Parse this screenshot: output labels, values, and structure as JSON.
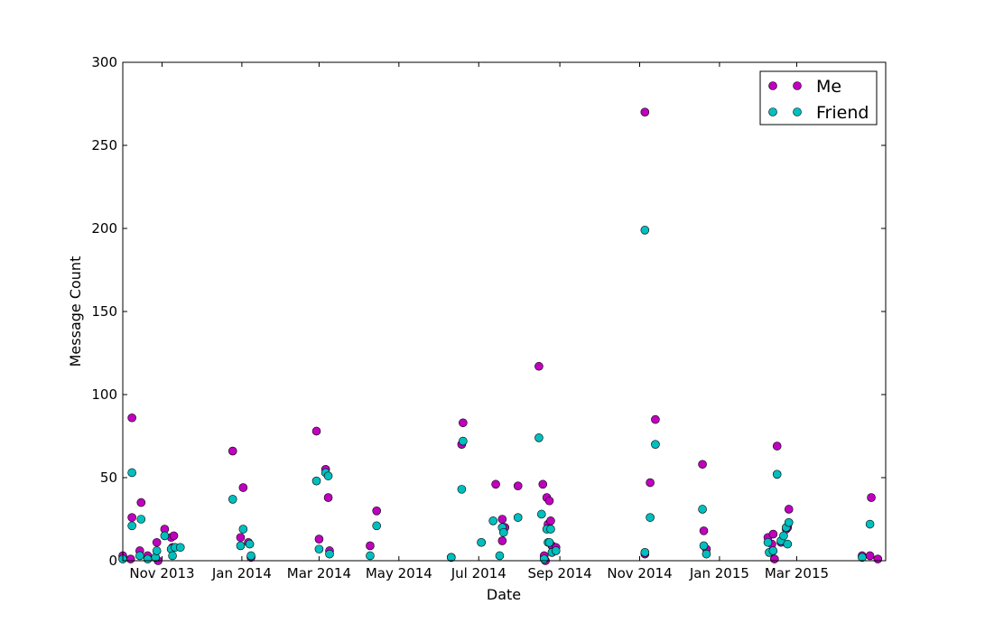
{
  "chart_data": {
    "type": "scatter",
    "title": "",
    "xlabel": "Date",
    "ylabel": "Message Count",
    "x_tick_labels": [
      "Nov 2013",
      "Jan 2014",
      "Mar 2014",
      "May 2014",
      "Jul 2014",
      "Sep 2014",
      "Nov 2014",
      "Jan 2015",
      "Mar 2015"
    ],
    "x_ticks": [
      "2013-11-01",
      "2014-01-01",
      "2014-03-01",
      "2014-05-01",
      "2014-07-01",
      "2014-09-01",
      "2014-11-01",
      "2015-01-01",
      "2015-03-01"
    ],
    "y_tick_labels": [
      "0",
      "50",
      "100",
      "150",
      "200",
      "250",
      "300"
    ],
    "xlim": [
      "2013-10-02",
      "2015-05-08"
    ],
    "ylim": [
      0,
      300
    ],
    "grid": false,
    "legend_position": "top-right",
    "colors": {
      "Me": "#bf00bf",
      "Friend": "#00bfbf"
    },
    "series": [
      {
        "name": "Me",
        "points": [
          [
            "2013-10-02",
            3
          ],
          [
            "2013-10-08",
            1
          ],
          [
            "2013-10-09",
            86
          ],
          [
            "2013-10-09",
            26
          ],
          [
            "2013-10-15",
            6
          ],
          [
            "2013-10-16",
            35
          ],
          [
            "2013-10-21",
            3
          ],
          [
            "2013-10-28",
            11
          ],
          [
            "2013-10-29",
            0
          ],
          [
            "2013-11-03",
            19
          ],
          [
            "2013-11-08",
            14
          ],
          [
            "2013-11-10",
            15
          ],
          [
            "2013-11-09",
            8
          ],
          [
            "2013-12-25",
            66
          ],
          [
            "2013-12-31",
            14
          ],
          [
            "2014-01-02",
            44
          ],
          [
            "2014-01-06",
            11
          ],
          [
            "2014-01-08",
            2
          ],
          [
            "2014-02-27",
            78
          ],
          [
            "2014-03-01",
            13
          ],
          [
            "2014-03-06",
            55
          ],
          [
            "2014-03-08",
            38
          ],
          [
            "2014-03-09",
            6
          ],
          [
            "2014-04-09",
            9
          ],
          [
            "2014-04-14",
            30
          ],
          [
            "2014-06-10",
            2
          ],
          [
            "2014-06-18",
            70
          ],
          [
            "2014-06-19",
            83
          ],
          [
            "2014-07-03",
            11
          ],
          [
            "2014-07-14",
            46
          ],
          [
            "2014-07-19",
            12
          ],
          [
            "2014-07-19",
            25
          ],
          [
            "2014-07-21",
            20
          ],
          [
            "2014-07-31",
            45
          ],
          [
            "2014-08-16",
            117
          ],
          [
            "2014-08-19",
            46
          ],
          [
            "2014-08-20",
            3
          ],
          [
            "2014-08-22",
            38
          ],
          [
            "2014-08-23",
            22
          ],
          [
            "2014-08-24",
            36
          ],
          [
            "2014-08-25",
            24
          ],
          [
            "2014-08-26",
            9
          ],
          [
            "2014-08-29",
            8
          ],
          [
            "2014-08-21",
            0
          ],
          [
            "2014-11-05",
            270
          ],
          [
            "2014-11-05",
            4
          ],
          [
            "2014-11-09",
            47
          ],
          [
            "2014-11-13",
            85
          ],
          [
            "2014-12-19",
            58
          ],
          [
            "2014-12-20",
            18
          ],
          [
            "2014-12-22",
            7
          ],
          [
            "2015-02-07",
            14
          ],
          [
            "2015-02-10",
            10
          ],
          [
            "2015-02-11",
            16
          ],
          [
            "2015-02-12",
            1
          ],
          [
            "2015-02-14",
            69
          ],
          [
            "2015-02-17",
            11
          ],
          [
            "2015-02-21",
            19
          ],
          [
            "2015-02-22",
            20
          ],
          [
            "2015-02-23",
            31
          ],
          [
            "2015-04-20",
            3
          ],
          [
            "2015-04-26",
            3
          ],
          [
            "2015-04-27",
            38
          ],
          [
            "2015-05-02",
            1
          ]
        ]
      },
      {
        "name": "Friend",
        "points": [
          [
            "2013-10-02",
            1
          ],
          [
            "2013-10-09",
            53
          ],
          [
            "2013-10-09",
            21
          ],
          [
            "2013-10-15",
            3
          ],
          [
            "2013-10-16",
            25
          ],
          [
            "2013-10-21",
            1
          ],
          [
            "2013-10-27",
            2
          ],
          [
            "2013-10-28",
            6
          ],
          [
            "2013-11-03",
            15
          ],
          [
            "2013-11-08",
            7
          ],
          [
            "2013-11-09",
            3
          ],
          [
            "2013-11-11",
            8
          ],
          [
            "2013-11-15",
            8
          ],
          [
            "2013-12-25",
            37
          ],
          [
            "2013-12-31",
            9
          ],
          [
            "2014-01-02",
            19
          ],
          [
            "2014-01-07",
            10
          ],
          [
            "2014-01-08",
            3
          ],
          [
            "2014-02-27",
            48
          ],
          [
            "2014-03-01",
            7
          ],
          [
            "2014-03-06",
            53
          ],
          [
            "2014-03-08",
            51
          ],
          [
            "2014-03-09",
            4
          ],
          [
            "2014-04-09",
            3
          ],
          [
            "2014-04-14",
            21
          ],
          [
            "2014-06-10",
            2
          ],
          [
            "2014-06-18",
            43
          ],
          [
            "2014-06-19",
            72
          ],
          [
            "2014-07-03",
            11
          ],
          [
            "2014-07-12",
            24
          ],
          [
            "2014-07-17",
            3
          ],
          [
            "2014-07-19",
            20
          ],
          [
            "2014-07-20",
            17
          ],
          [
            "2014-07-31",
            26
          ],
          [
            "2014-08-16",
            74
          ],
          [
            "2014-08-18",
            28
          ],
          [
            "2014-08-20",
            1
          ],
          [
            "2014-08-22",
            19
          ],
          [
            "2014-08-23",
            11
          ],
          [
            "2014-08-24",
            11
          ],
          [
            "2014-08-25",
            19
          ],
          [
            "2014-08-26",
            5
          ],
          [
            "2014-08-29",
            6
          ],
          [
            "2014-11-05",
            199
          ],
          [
            "2014-11-05",
            5
          ],
          [
            "2014-11-09",
            26
          ],
          [
            "2014-11-13",
            70
          ],
          [
            "2014-12-19",
            31
          ],
          [
            "2014-12-20",
            9
          ],
          [
            "2014-12-22",
            4
          ],
          [
            "2015-02-07",
            11
          ],
          [
            "2015-02-08",
            5
          ],
          [
            "2015-02-11",
            6
          ],
          [
            "2015-02-14",
            52
          ],
          [
            "2015-02-17",
            12
          ],
          [
            "2015-02-19",
            15
          ],
          [
            "2015-02-21",
            20
          ],
          [
            "2015-02-22",
            10
          ],
          [
            "2015-02-23",
            23
          ],
          [
            "2015-04-20",
            2
          ],
          [
            "2015-04-26",
            22
          ]
        ]
      }
    ]
  }
}
